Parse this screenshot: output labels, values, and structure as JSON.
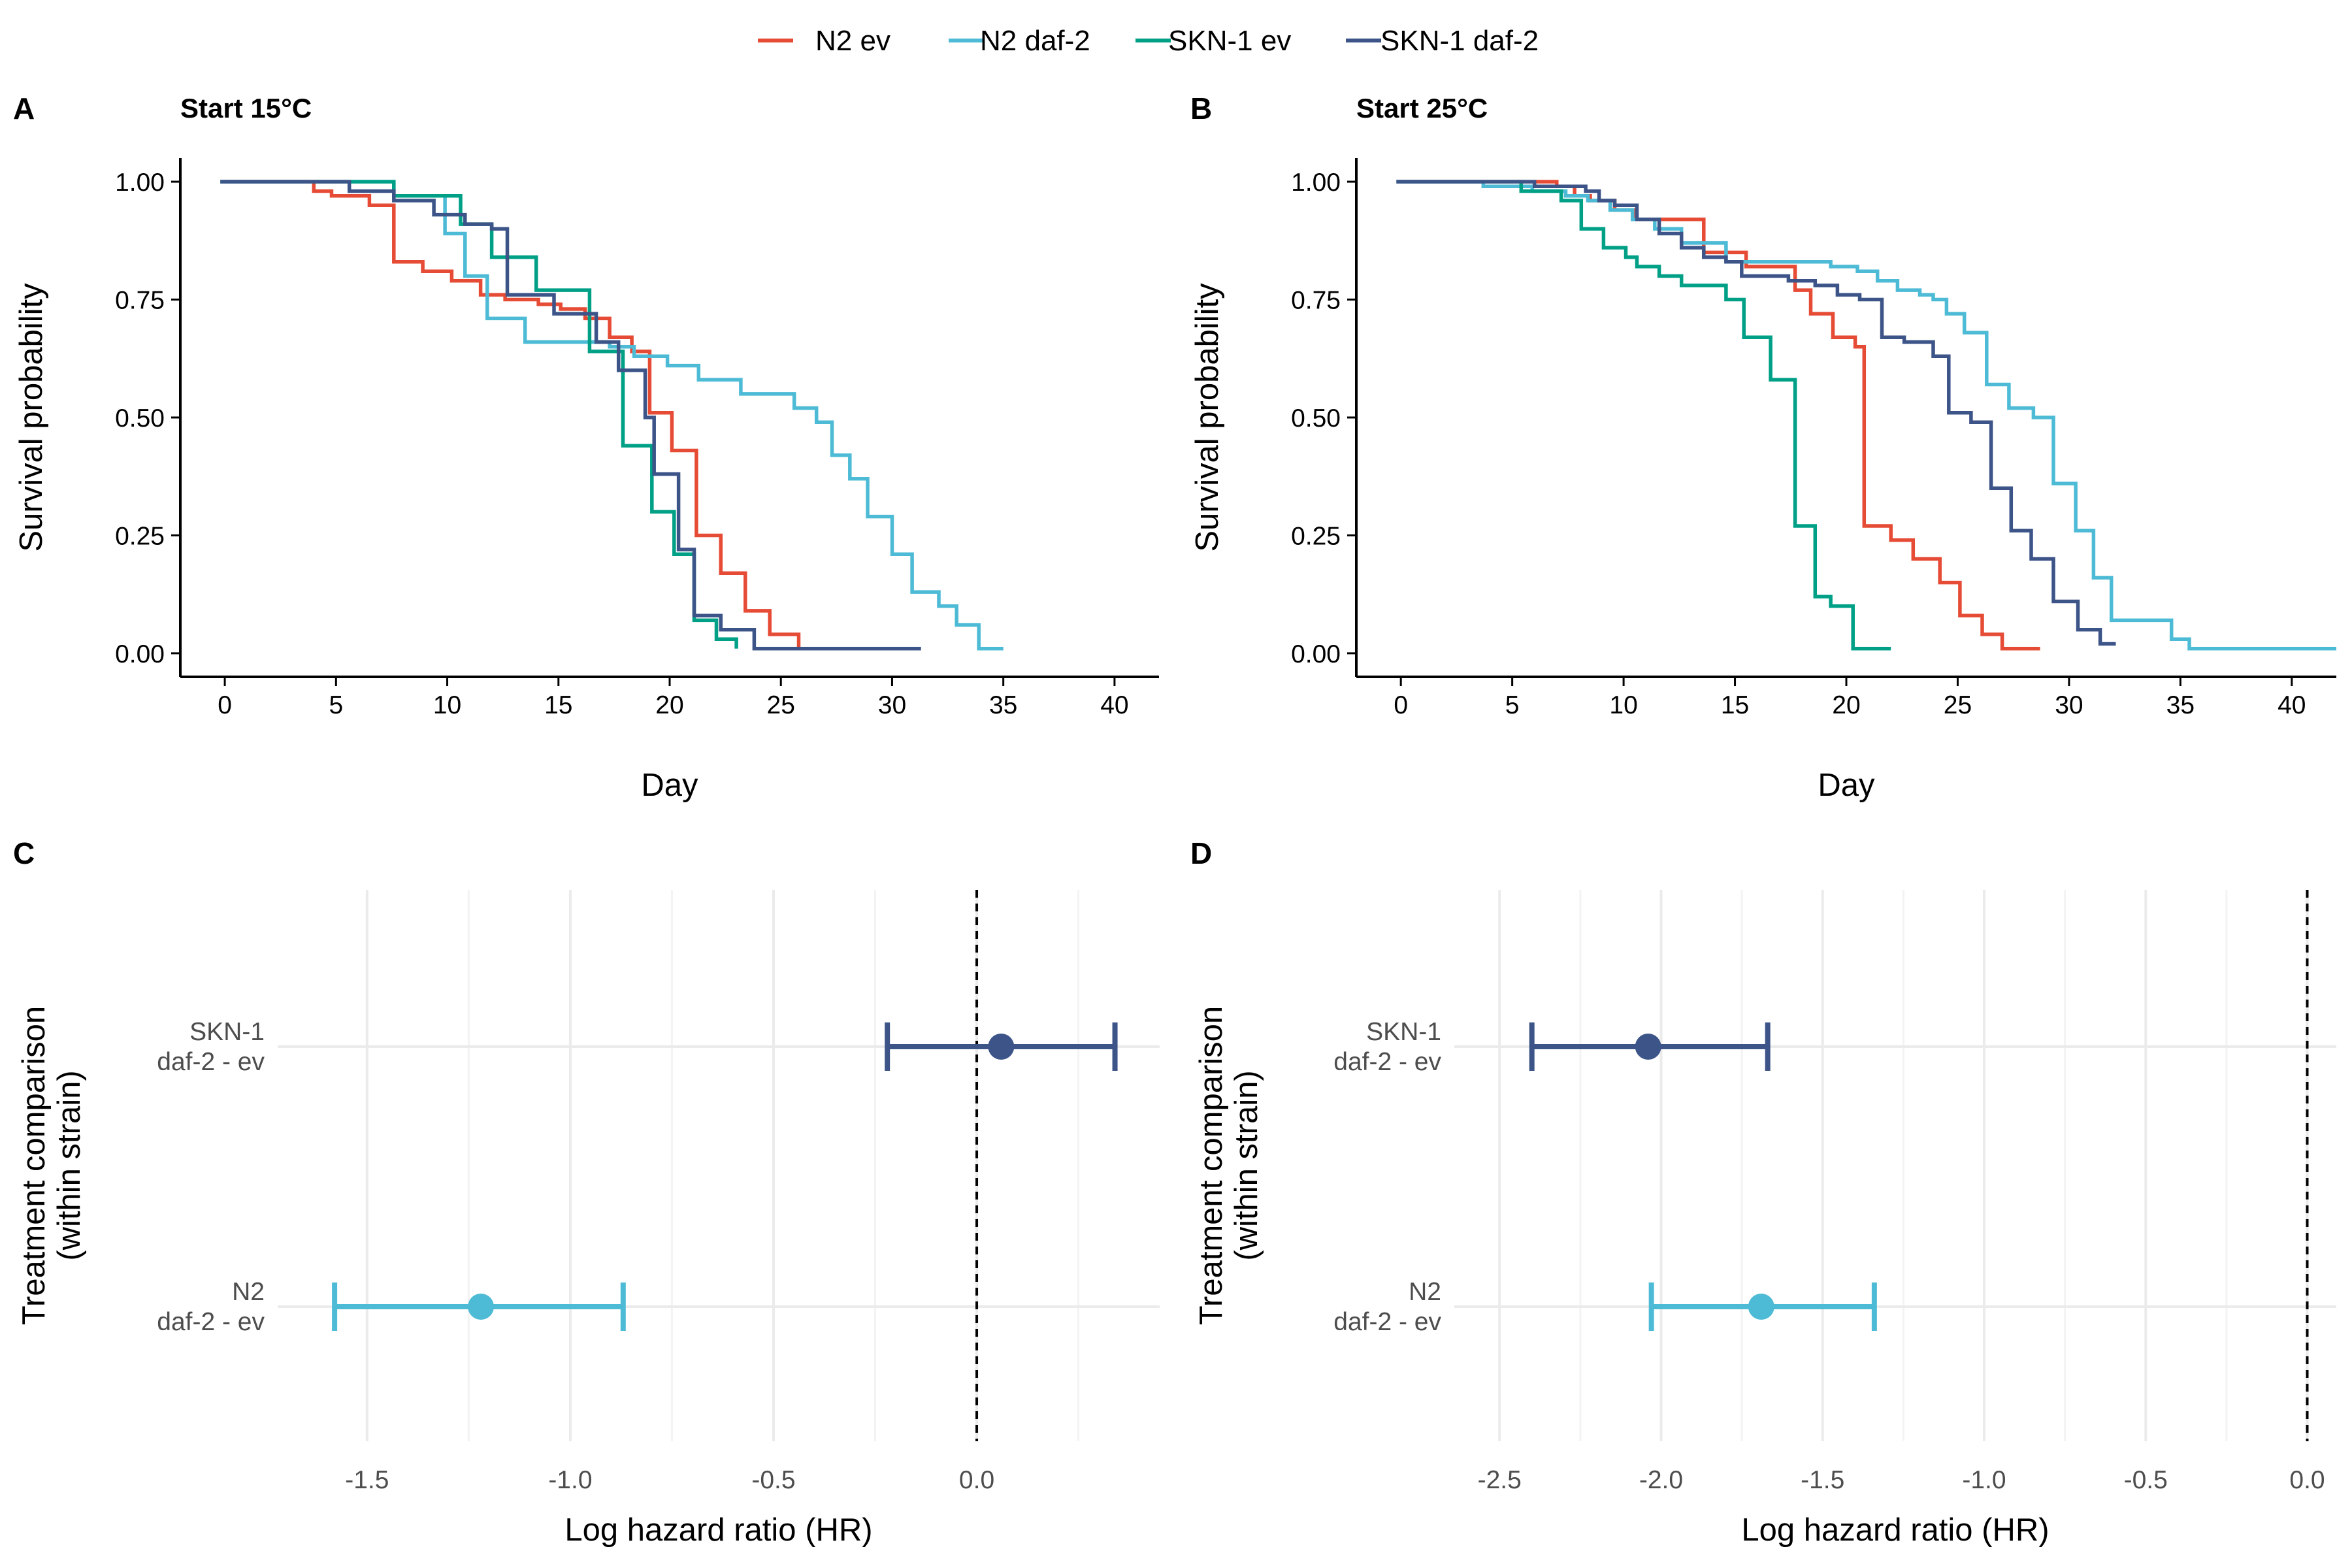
{
  "legend": [
    {
      "name": "N2 ev",
      "color": "#E64B35"
    },
    {
      "name": "N2 daf-2",
      "color": "#4DBBD5"
    },
    {
      "name": "SKN-1 ev",
      "color": "#00A087"
    },
    {
      "name": "SKN-1 daf-2",
      "color": "#3C5488"
    }
  ],
  "panels": {
    "A": {
      "letter": "A",
      "title": "Start 15°C"
    },
    "B": {
      "letter": "B",
      "title": "Start 25°C"
    },
    "C": {
      "letter": "C"
    },
    "D": {
      "letter": "D"
    }
  },
  "chart_data": [
    {
      "panel": "A",
      "type": "line",
      "subtype": "kaplan-meier step",
      "title": "Start 15°C",
      "xlabel": "Day",
      "ylabel": "Survival probability",
      "xlim": [
        -2,
        42
      ],
      "ylim": [
        -0.05,
        1.05
      ],
      "xticks": [
        0,
        5,
        10,
        15,
        20,
        25,
        30,
        35,
        40
      ],
      "yticks": [
        0.0,
        0.25,
        0.5,
        0.75,
        1.0
      ],
      "ytick_labels": [
        "0.00",
        "0.25",
        "0.50",
        "0.75",
        "1.00"
      ],
      "grid": false,
      "series": [
        {
          "name": "N2 ev",
          "color": "#E64B35",
          "x": [
            -0.2,
            4.0,
            4.8,
            6.5,
            7.6,
            8.9,
            10.2,
            11.5,
            12.6,
            14.1,
            15.1,
            16.2,
            17.3,
            18.3,
            19.1,
            20.1,
            21.2,
            22.3,
            23.4,
            24.5,
            25.8
          ],
          "y": [
            1.0,
            0.98,
            0.97,
            0.95,
            0.83,
            0.81,
            0.79,
            0.76,
            0.75,
            0.74,
            0.73,
            0.71,
            0.67,
            0.64,
            0.51,
            0.43,
            0.25,
            0.17,
            0.09,
            0.04,
            0.01
          ]
        },
        {
          "name": "N2 daf-2",
          "color": "#4DBBD5",
          "x": [
            -0.2,
            7.6,
            9.9,
            10.8,
            11.8,
            13.5,
            17.3,
            18.4,
            19.9,
            21.3,
            23.2,
            25.6,
            26.6,
            27.3,
            28.1,
            28.9,
            30.0,
            30.9,
            32.1,
            32.9,
            33.9,
            35.0
          ],
          "y": [
            1.0,
            0.97,
            0.89,
            0.8,
            0.71,
            0.66,
            0.65,
            0.63,
            0.61,
            0.58,
            0.55,
            0.52,
            0.49,
            0.42,
            0.37,
            0.29,
            0.21,
            0.13,
            0.1,
            0.06,
            0.01,
            0.01
          ]
        },
        {
          "name": "SKN-1 ev",
          "color": "#00A087",
          "x": [
            -0.2,
            7.6,
            10.6,
            12.0,
            14.0,
            16.4,
            17.9,
            19.2,
            20.2,
            21.1,
            22.1,
            23.0
          ],
          "y": [
            1.0,
            0.97,
            0.91,
            0.84,
            0.77,
            0.64,
            0.44,
            0.3,
            0.21,
            0.07,
            0.03,
            0.01
          ]
        },
        {
          "name": "SKN-1 daf-2",
          "color": "#3C5488",
          "x": [
            -0.2,
            5.6,
            7.6,
            9.4,
            10.8,
            12.0,
            12.7,
            14.8,
            16.7,
            17.7,
            18.9,
            19.3,
            20.4,
            21.1,
            22.3,
            23.8,
            31.3
          ],
          "y": [
            1.0,
            0.98,
            0.96,
            0.93,
            0.91,
            0.9,
            0.76,
            0.72,
            0.66,
            0.6,
            0.5,
            0.38,
            0.22,
            0.08,
            0.05,
            0.01,
            0.01
          ]
        }
      ]
    },
    {
      "panel": "B",
      "type": "line",
      "subtype": "kaplan-meier step",
      "title": "Start 25°C",
      "xlabel": "Day",
      "ylabel": "Survival probability",
      "xlim": [
        -2,
        42
      ],
      "ylim": [
        -0.05,
        1.05
      ],
      "xticks": [
        0,
        5,
        10,
        15,
        20,
        25,
        30,
        35,
        40
      ],
      "yticks": [
        0.0,
        0.25,
        0.5,
        0.75,
        1.0
      ],
      "ytick_labels": [
        "0.00",
        "0.25",
        "0.50",
        "0.75",
        "1.00"
      ],
      "grid": false,
      "series": [
        {
          "name": "N2 ev",
          "color": "#E64B35",
          "x": [
            -0.2,
            7.0,
            7.8,
            8.5,
            9.6,
            10.5,
            13.6,
            15.5,
            17.7,
            18.4,
            19.4,
            20.4,
            20.8,
            22.0,
            23.0,
            24.2,
            25.1,
            26.1,
            27.0,
            28.7
          ],
          "y": [
            1.0,
            0.99,
            0.97,
            0.96,
            0.94,
            0.92,
            0.85,
            0.82,
            0.77,
            0.72,
            0.67,
            0.65,
            0.27,
            0.24,
            0.2,
            0.15,
            0.08,
            0.04,
            0.01,
            0.01
          ]
        },
        {
          "name": "N2 daf-2",
          "color": "#4DBBD5",
          "x": [
            -0.2,
            3.7,
            5.9,
            7.4,
            8.4,
            9.4,
            10.4,
            11.4,
            12.6,
            14.6,
            19.3,
            20.5,
            21.4,
            22.3,
            23.3,
            23.9,
            24.5,
            25.3,
            26.3,
            27.3,
            28.4,
            29.3,
            30.3,
            31.1,
            31.9,
            32.6,
            34.6,
            35.4,
            40.0,
            42.0
          ],
          "y": [
            1.0,
            0.99,
            0.98,
            0.97,
            0.96,
            0.94,
            0.92,
            0.9,
            0.87,
            0.83,
            0.82,
            0.81,
            0.79,
            0.77,
            0.76,
            0.75,
            0.72,
            0.68,
            0.57,
            0.52,
            0.5,
            0.36,
            0.26,
            0.16,
            0.07,
            0.07,
            0.03,
            0.01,
            0.01,
            0.01
          ]
        },
        {
          "name": "SKN-1 ev",
          "color": "#00A087",
          "x": [
            -0.2,
            5.4,
            7.2,
            8.1,
            9.1,
            10.1,
            10.6,
            11.6,
            12.6,
            14.6,
            15.4,
            16.6,
            17.7,
            18.6,
            19.3,
            20.3,
            21.3,
            22.0
          ],
          "y": [
            1.0,
            0.98,
            0.96,
            0.9,
            0.86,
            0.84,
            0.82,
            0.8,
            0.78,
            0.75,
            0.67,
            0.58,
            0.27,
            0.12,
            0.1,
            0.01,
            0.01,
            0.01
          ]
        },
        {
          "name": "SKN-1 daf-2",
          "color": "#3C5488",
          "x": [
            -0.2,
            6.0,
            8.3,
            8.9,
            9.6,
            10.6,
            11.6,
            12.6,
            13.6,
            14.6,
            15.3,
            17.4,
            18.6,
            19.6,
            20.6,
            21.6,
            22.6,
            23.9,
            24.6,
            25.6,
            26.5,
            27.4,
            28.3,
            29.3,
            30.4,
            31.4,
            32.1
          ],
          "y": [
            1.0,
            0.99,
            0.98,
            0.96,
            0.95,
            0.92,
            0.89,
            0.86,
            0.84,
            0.83,
            0.8,
            0.79,
            0.78,
            0.76,
            0.75,
            0.67,
            0.66,
            0.63,
            0.51,
            0.49,
            0.35,
            0.26,
            0.2,
            0.11,
            0.05,
            0.02,
            0.02
          ]
        }
      ]
    },
    {
      "panel": "C",
      "type": "scatter",
      "subtype": "forest plot (point + error bars)",
      "xlabel": "Log hazard ratio (HR)",
      "ylabel": "Treatment comparison\n(within strain)",
      "xlim": [
        -1.72,
        0.45
      ],
      "xticks": [
        -1.5,
        -1.0,
        -0.5,
        0.0
      ],
      "xtick_labels": [
        "-1.5",
        "-1.0",
        "-0.5",
        "0.0"
      ],
      "reference_line": 0.0,
      "grid": true,
      "categories": [
        "SKN-1\ndaf-2 - ev",
        "N2\ndaf-2 - ev"
      ],
      "series": [
        {
          "category": "SKN-1\ndaf-2 - ev",
          "color": "#3C5488",
          "estimate": 0.06,
          "lower": -0.22,
          "upper": 0.34
        },
        {
          "category": "N2\ndaf-2 - ev",
          "color": "#4DBBD5",
          "estimate": -1.22,
          "lower": -1.58,
          "upper": -0.87
        }
      ]
    },
    {
      "panel": "D",
      "type": "scatter",
      "subtype": "forest plot (point + error bars)",
      "xlabel": "Log hazard ratio (HR)",
      "ylabel": "Treatment comparison\n(within strain)",
      "xlim": [
        -2.64,
        0.09
      ],
      "xticks": [
        -2.5,
        -2.0,
        -1.5,
        -1.0,
        -0.5,
        0.0
      ],
      "xtick_labels": [
        "-2.5",
        "-2.0",
        "-1.5",
        "-1.0",
        "-0.5",
        "0.0"
      ],
      "reference_line": 0.0,
      "grid": true,
      "categories": [
        "SKN-1\ndaf-2 - ev",
        "N2\ndaf-2 - ev"
      ],
      "series": [
        {
          "category": "SKN-1\ndaf-2 - ev",
          "color": "#3C5488",
          "estimate": -2.04,
          "lower": -2.4,
          "upper": -1.67
        },
        {
          "category": "N2\ndaf-2 - ev",
          "color": "#4DBBD5",
          "estimate": -1.69,
          "lower": -2.03,
          "upper": -1.34
        }
      ]
    }
  ]
}
